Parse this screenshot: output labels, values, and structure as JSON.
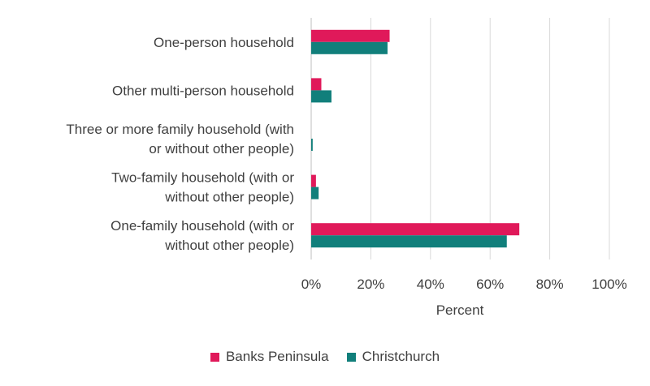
{
  "chart_data": {
    "type": "bar",
    "orientation": "horizontal",
    "categories": [
      [
        "One-person household"
      ],
      [
        "Other multi-person household"
      ],
      [
        "Three or more family household (with",
        "or without other people)"
      ],
      [
        "Two-family household (with or",
        "without other people)"
      ],
      [
        "One-family household (with or",
        "without other people)"
      ]
    ],
    "series": [
      {
        "name": "Banks Peninsula",
        "color": "#e0195a",
        "values": [
          26.3,
          3.4,
          0.0,
          1.6,
          69.8
        ]
      },
      {
        "name": "Christchurch",
        "color": "#117f7b",
        "values": [
          25.6,
          6.8,
          0.5,
          2.5,
          65.6
        ]
      }
    ],
    "xlabel": "Percent",
    "xlim": [
      0,
      100
    ],
    "xticks": [
      "0%",
      "20%",
      "40%",
      "60%",
      "80%",
      "100%"
    ],
    "xtick_values": [
      0,
      20,
      40,
      60,
      80,
      100
    ],
    "grid": "vertical",
    "legend_position": "bottom"
  }
}
